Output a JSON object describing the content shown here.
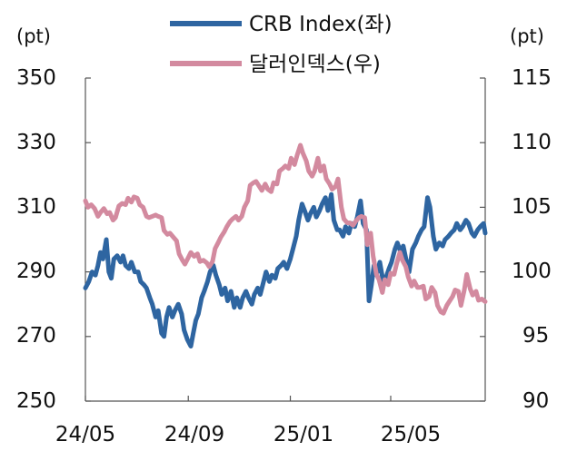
{
  "chart_data": {
    "type": "line",
    "left_unit": "(pt)",
    "right_unit": "(pt)",
    "y_left": {
      "min": 250,
      "max": 350,
      "ticks": [
        "350",
        "330",
        "310",
        "290",
        "270",
        "250"
      ]
    },
    "y_right": {
      "min": 90,
      "max": 115,
      "ticks": [
        "115",
        "110",
        "105",
        "100",
        "95",
        "90"
      ]
    },
    "x_ticks": [
      "24/05",
      "24/09",
      "25/01",
      "25/05"
    ],
    "x_tick_dates": [
      "2024-05-01",
      "2024-09-01",
      "2025-01-01",
      "2025-05-01"
    ],
    "x_range": [
      "2024-05-01",
      "2025-08-22"
    ],
    "grid": false,
    "legend_position": "top-center",
    "series": [
      {
        "name": "CRB Index(좌)",
        "axis": "left",
        "color": "#2e65a1",
        "points": [
          [
            "2024-05-01",
            285
          ],
          [
            "2024-05-05",
            287
          ],
          [
            "2024-05-09",
            290
          ],
          [
            "2024-05-13",
            289
          ],
          [
            "2024-05-16",
            292
          ],
          [
            "2024-05-19",
            296
          ],
          [
            "2024-05-22",
            294
          ],
          [
            "2024-05-26",
            300
          ],
          [
            "2024-05-29",
            290
          ],
          [
            "2024-06-01",
            288
          ],
          [
            "2024-06-04",
            294
          ],
          [
            "2024-06-08",
            295
          ],
          [
            "2024-06-12",
            293
          ],
          [
            "2024-06-15",
            295
          ],
          [
            "2024-06-18",
            292
          ],
          [
            "2024-06-22",
            291
          ],
          [
            "2024-06-25",
            293
          ],
          [
            "2024-06-29",
            290
          ],
          [
            "2024-07-03",
            290
          ],
          [
            "2024-07-06",
            287
          ],
          [
            "2024-07-10",
            286
          ],
          [
            "2024-07-13",
            285
          ],
          [
            "2024-07-17",
            282
          ],
          [
            "2024-07-20",
            280
          ],
          [
            "2024-07-24",
            276
          ],
          [
            "2024-07-27",
            278
          ],
          [
            "2024-07-31",
            271
          ],
          [
            "2024-08-03",
            270
          ],
          [
            "2024-08-06",
            276
          ],
          [
            "2024-08-09",
            279
          ],
          [
            "2024-08-13",
            276
          ],
          [
            "2024-08-16",
            278
          ],
          [
            "2024-08-20",
            280
          ],
          [
            "2024-08-24",
            277
          ],
          [
            "2024-08-27",
            272
          ],
          [
            "2024-08-31",
            269
          ],
          [
            "2024-09-04",
            267
          ],
          [
            "2024-09-07",
            271
          ],
          [
            "2024-09-10",
            275
          ],
          [
            "2024-09-13",
            277
          ],
          [
            "2024-09-17",
            282
          ],
          [
            "2024-09-20",
            284
          ],
          [
            "2024-09-24",
            287
          ],
          [
            "2024-09-27",
            290
          ],
          [
            "2024-10-01",
            292
          ],
          [
            "2024-10-04",
            289
          ],
          [
            "2024-10-08",
            286
          ],
          [
            "2024-10-11",
            283
          ],
          [
            "2024-10-15",
            285
          ],
          [
            "2024-10-18",
            281
          ],
          [
            "2024-10-22",
            284
          ],
          [
            "2024-10-26",
            279
          ],
          [
            "2024-10-29",
            282
          ],
          [
            "2024-11-02",
            279
          ],
          [
            "2024-11-05",
            282
          ],
          [
            "2024-11-09",
            284
          ],
          [
            "2024-11-12",
            282
          ],
          [
            "2024-11-16",
            280
          ],
          [
            "2024-11-19",
            283
          ],
          [
            "2024-11-23",
            285
          ],
          [
            "2024-11-26",
            283
          ],
          [
            "2024-11-30",
            287
          ],
          [
            "2024-12-03",
            290
          ],
          [
            "2024-12-07",
            287
          ],
          [
            "2024-12-10",
            289
          ],
          [
            "2024-12-14",
            288
          ],
          [
            "2024-12-17",
            291
          ],
          [
            "2024-12-21",
            292
          ],
          [
            "2024-12-24",
            293
          ],
          [
            "2024-12-28",
            291
          ],
          [
            "2025-01-01",
            294
          ],
          [
            "2025-01-04",
            297
          ],
          [
            "2025-01-08",
            301
          ],
          [
            "2025-01-11",
            306
          ],
          [
            "2025-01-15",
            311
          ],
          [
            "2025-01-18",
            309
          ],
          [
            "2025-01-22",
            306
          ],
          [
            "2025-01-25",
            308
          ],
          [
            "2025-01-29",
            310
          ],
          [
            "2025-02-01",
            307
          ],
          [
            "2025-02-05",
            309
          ],
          [
            "2025-02-08",
            311
          ],
          [
            "2025-02-12",
            313
          ],
          [
            "2025-02-15",
            309
          ],
          [
            "2025-02-19",
            314
          ],
          [
            "2025-02-22",
            306
          ],
          [
            "2025-02-26",
            303
          ],
          [
            "2025-03-01",
            303
          ],
          [
            "2025-03-05",
            301
          ],
          [
            "2025-03-08",
            304
          ],
          [
            "2025-03-12",
            302
          ],
          [
            "2025-03-15",
            305
          ],
          [
            "2025-03-19",
            304
          ],
          [
            "2025-03-22",
            307
          ],
          [
            "2025-03-26",
            312
          ],
          [
            "2025-03-29",
            305
          ],
          [
            "2025-04-02",
            303
          ],
          [
            "2025-04-05",
            281
          ],
          [
            "2025-04-08",
            286
          ],
          [
            "2025-04-11",
            292
          ],
          [
            "2025-04-15",
            290
          ],
          [
            "2025-04-18",
            293
          ],
          [
            "2025-04-22",
            287
          ],
          [
            "2025-04-25",
            288
          ],
          [
            "2025-04-29",
            291
          ],
          [
            "2025-05-02",
            293
          ],
          [
            "2025-05-06",
            297
          ],
          [
            "2025-05-09",
            299
          ],
          [
            "2025-05-13",
            296
          ],
          [
            "2025-05-16",
            298
          ],
          [
            "2025-05-20",
            293
          ],
          [
            "2025-05-23",
            290
          ],
          [
            "2025-05-27",
            297
          ],
          [
            "2025-05-31",
            299
          ],
          [
            "2025-06-03",
            301
          ],
          [
            "2025-06-07",
            303
          ],
          [
            "2025-06-10",
            304
          ],
          [
            "2025-06-14",
            313
          ],
          [
            "2025-06-17",
            310
          ],
          [
            "2025-06-21",
            301
          ],
          [
            "2025-06-24",
            297
          ],
          [
            "2025-06-28",
            299
          ],
          [
            "2025-07-02",
            298
          ],
          [
            "2025-07-05",
            300
          ],
          [
            "2025-07-09",
            301
          ],
          [
            "2025-07-12",
            302
          ],
          [
            "2025-07-16",
            303
          ],
          [
            "2025-07-19",
            305
          ],
          [
            "2025-07-23",
            303
          ],
          [
            "2025-07-26",
            304
          ],
          [
            "2025-07-30",
            306
          ],
          [
            "2025-08-02",
            305
          ],
          [
            "2025-08-06",
            302
          ],
          [
            "2025-08-09",
            301
          ],
          [
            "2025-08-13",
            303
          ],
          [
            "2025-08-16",
            304
          ],
          [
            "2025-08-20",
            305
          ],
          [
            "2025-08-22",
            302
          ]
        ]
      },
      {
        "name": "달러인덱스(우)",
        "axis": "right",
        "color": "#d38a9f",
        "points": [
          [
            "2024-05-01",
            105.5
          ],
          [
            "2024-05-04",
            105.0
          ],
          [
            "2024-05-08",
            105.2
          ],
          [
            "2024-05-12",
            104.9
          ],
          [
            "2024-05-16",
            104.3
          ],
          [
            "2024-05-19",
            104.6
          ],
          [
            "2024-05-23",
            104.9
          ],
          [
            "2024-05-27",
            104.5
          ],
          [
            "2024-05-30",
            104.6
          ],
          [
            "2024-06-03",
            104.0
          ],
          [
            "2024-06-06",
            104.2
          ],
          [
            "2024-06-10",
            105.1
          ],
          [
            "2024-06-14",
            105.3
          ],
          [
            "2024-06-18",
            105.2
          ],
          [
            "2024-06-21",
            105.7
          ],
          [
            "2024-06-25",
            105.4
          ],
          [
            "2024-06-28",
            105.8
          ],
          [
            "2024-07-02",
            105.7
          ],
          [
            "2024-07-05",
            105.2
          ],
          [
            "2024-07-09",
            105.0
          ],
          [
            "2024-07-13",
            104.3
          ],
          [
            "2024-07-16",
            104.2
          ],
          [
            "2024-07-20",
            104.3
          ],
          [
            "2024-07-24",
            104.4
          ],
          [
            "2024-07-27",
            104.3
          ],
          [
            "2024-07-31",
            104.2
          ],
          [
            "2024-08-03",
            103.2
          ],
          [
            "2024-08-07",
            102.9
          ],
          [
            "2024-08-10",
            103.0
          ],
          [
            "2024-08-14",
            102.7
          ],
          [
            "2024-08-18",
            102.4
          ],
          [
            "2024-08-21",
            101.4
          ],
          [
            "2024-08-25",
            100.9
          ],
          [
            "2024-08-28",
            100.6
          ],
          [
            "2024-09-01",
            101.1
          ],
          [
            "2024-09-04",
            101.5
          ],
          [
            "2024-09-08",
            101.2
          ],
          [
            "2024-09-12",
            101.4
          ],
          [
            "2024-09-15",
            100.8
          ],
          [
            "2024-09-19",
            100.9
          ],
          [
            "2024-09-23",
            100.7
          ],
          [
            "2024-09-26",
            100.4
          ],
          [
            "2024-09-30",
            100.8
          ],
          [
            "2024-10-03",
            101.8
          ],
          [
            "2024-10-07",
            102.3
          ],
          [
            "2024-10-10",
            102.7
          ],
          [
            "2024-10-14",
            103.1
          ],
          [
            "2024-10-17",
            103.5
          ],
          [
            "2024-10-21",
            103.9
          ],
          [
            "2024-10-24",
            104.1
          ],
          [
            "2024-10-28",
            104.3
          ],
          [
            "2024-10-31",
            104.0
          ],
          [
            "2024-11-04",
            104.3
          ],
          [
            "2024-11-07",
            105.0
          ],
          [
            "2024-11-11",
            105.5
          ],
          [
            "2024-11-14",
            106.7
          ],
          [
            "2024-11-18",
            106.9
          ],
          [
            "2024-11-21",
            107.0
          ],
          [
            "2024-11-25",
            106.6
          ],
          [
            "2024-11-28",
            106.3
          ],
          [
            "2024-12-02",
            106.8
          ],
          [
            "2024-12-05",
            106.4
          ],
          [
            "2024-12-09",
            106.2
          ],
          [
            "2024-12-12",
            106.9
          ],
          [
            "2024-12-16",
            106.8
          ],
          [
            "2024-12-19",
            107.8
          ],
          [
            "2024-12-23",
            108.0
          ],
          [
            "2024-12-26",
            108.2
          ],
          [
            "2024-12-30",
            108.0
          ],
          [
            "2025-01-02",
            108.8
          ],
          [
            "2025-01-06",
            108.3
          ],
          [
            "2025-01-09",
            109.0
          ],
          [
            "2025-01-13",
            109.8
          ],
          [
            "2025-01-16",
            109.2
          ],
          [
            "2025-01-20",
            108.6
          ],
          [
            "2025-01-23",
            107.8
          ],
          [
            "2025-01-27",
            107.4
          ],
          [
            "2025-01-30",
            107.8
          ],
          [
            "2025-02-03",
            108.8
          ],
          [
            "2025-02-06",
            107.8
          ],
          [
            "2025-02-10",
            108.2
          ],
          [
            "2025-02-13",
            107.2
          ],
          [
            "2025-02-17",
            106.8
          ],
          [
            "2025-02-20",
            106.4
          ],
          [
            "2025-02-24",
            106.6
          ],
          [
            "2025-02-27",
            107.2
          ],
          [
            "2025-03-03",
            105.0
          ],
          [
            "2025-03-06",
            104.1
          ],
          [
            "2025-03-10",
            103.8
          ],
          [
            "2025-03-13",
            103.8
          ],
          [
            "2025-03-17",
            103.6
          ],
          [
            "2025-03-20",
            103.9
          ],
          [
            "2025-03-24",
            104.2
          ],
          [
            "2025-03-27",
            104.3
          ],
          [
            "2025-03-31",
            104.2
          ],
          [
            "2025-04-03",
            102.1
          ],
          [
            "2025-04-07",
            103.0
          ],
          [
            "2025-04-10",
            101.2
          ],
          [
            "2025-04-14",
            99.8
          ],
          [
            "2025-04-17",
            99.4
          ],
          [
            "2025-04-21",
            98.4
          ],
          [
            "2025-04-24",
            99.4
          ],
          [
            "2025-04-28",
            99.0
          ],
          [
            "2025-05-01",
            99.9
          ],
          [
            "2025-05-05",
            99.8
          ],
          [
            "2025-05-08",
            100.6
          ],
          [
            "2025-05-12",
            101.5
          ],
          [
            "2025-05-15",
            100.9
          ],
          [
            "2025-05-19",
            100.4
          ],
          [
            "2025-05-22",
            99.6
          ],
          [
            "2025-05-26",
            98.9
          ],
          [
            "2025-05-29",
            99.3
          ],
          [
            "2025-06-02",
            98.8
          ],
          [
            "2025-06-05",
            98.8
          ],
          [
            "2025-06-09",
            98.9
          ],
          [
            "2025-06-12",
            97.9
          ],
          [
            "2025-06-16",
            98.1
          ],
          [
            "2025-06-19",
            98.8
          ],
          [
            "2025-06-23",
            98.4
          ],
          [
            "2025-06-26",
            97.4
          ],
          [
            "2025-06-30",
            96.9
          ],
          [
            "2025-07-03",
            96.8
          ],
          [
            "2025-07-07",
            97.4
          ],
          [
            "2025-07-10",
            97.7
          ],
          [
            "2025-07-14",
            98.1
          ],
          [
            "2025-07-17",
            98.6
          ],
          [
            "2025-07-21",
            98.5
          ],
          [
            "2025-07-24",
            97.4
          ],
          [
            "2025-07-28",
            98.6
          ],
          [
            "2025-07-31",
            99.8
          ],
          [
            "2025-08-04",
            98.7
          ],
          [
            "2025-08-07",
            98.2
          ],
          [
            "2025-08-11",
            98.5
          ],
          [
            "2025-08-14",
            97.8
          ],
          [
            "2025-08-18",
            97.9
          ],
          [
            "2025-08-22",
            97.7
          ]
        ]
      }
    ]
  }
}
